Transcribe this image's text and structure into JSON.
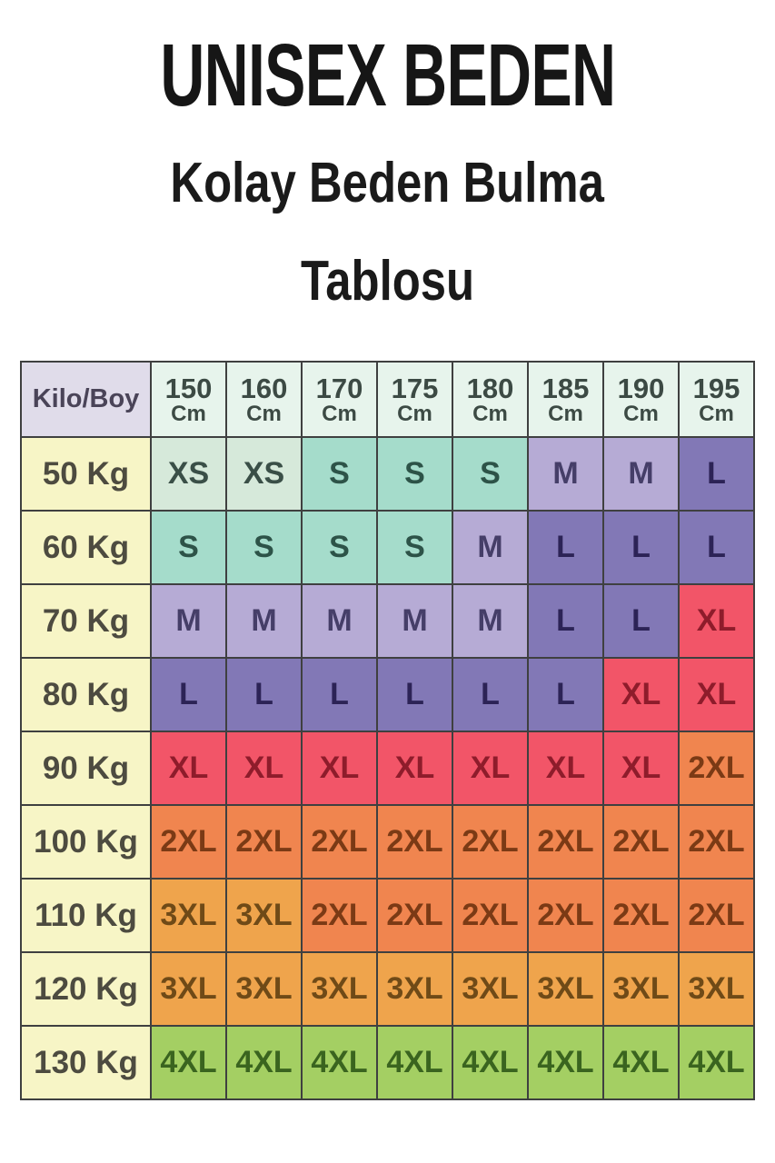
{
  "page": {
    "title": "UNISEX BEDEN",
    "subtitle_line1": "Kolay Beden Bulma",
    "subtitle_line2": "Tablosu"
  },
  "chart_data": {
    "type": "table",
    "title": "UNISEX BEDEN - Kolay Beden Bulma Tablosu",
    "corner_label": "Kilo/Boy",
    "unit_label": "Cm",
    "columns": [
      "150",
      "160",
      "170",
      "175",
      "180",
      "185",
      "190",
      "195"
    ],
    "rows": [
      {
        "label": "50 Kg",
        "sizes": [
          "XS",
          "XS",
          "S",
          "S",
          "S",
          "M",
          "M",
          "L"
        ]
      },
      {
        "label": "60 Kg",
        "sizes": [
          "S",
          "S",
          "S",
          "S",
          "M",
          "L",
          "L",
          "L"
        ]
      },
      {
        "label": "70 Kg",
        "sizes": [
          "M",
          "M",
          "M",
          "M",
          "M",
          "L",
          "L",
          "XL"
        ]
      },
      {
        "label": "80 Kg",
        "sizes": [
          "L",
          "L",
          "L",
          "L",
          "L",
          "L",
          "XL",
          "XL"
        ]
      },
      {
        "label": "90 Kg",
        "sizes": [
          "XL",
          "XL",
          "XL",
          "XL",
          "XL",
          "XL",
          "XL",
          "2XL"
        ]
      },
      {
        "label": "100 Kg",
        "sizes": [
          "2XL",
          "2XL",
          "2XL",
          "2XL",
          "2XL",
          "2XL",
          "2XL",
          "2XL"
        ]
      },
      {
        "label": "110 Kg",
        "sizes": [
          "3XL",
          "3XL",
          "2XL",
          "2XL",
          "2XL",
          "2XL",
          "2XL",
          "2XL"
        ]
      },
      {
        "label": "120 Kg",
        "sizes": [
          "3XL",
          "3XL",
          "3XL",
          "3XL",
          "3XL",
          "3XL",
          "3XL",
          "3XL"
        ]
      },
      {
        "label": "130 Kg",
        "sizes": [
          "4XL",
          "4XL",
          "4XL",
          "4XL",
          "4XL",
          "4XL",
          "4XL",
          "4XL"
        ]
      }
    ]
  },
  "colors": {
    "page_bg": "#ffffff",
    "border": "#3f4040",
    "title_text": "#161616",
    "corner_bg": "#e0dcea",
    "corner_text": "#4a4458",
    "col_header_bg": "#e7f4ec",
    "col_header_text": "#3c4a44",
    "row_label_bg": "#f7f5c6",
    "row_label_text": "#4d4b40",
    "sizes": {
      "xs": {
        "bg": "#d6e9da",
        "text": "#3a4f47"
      },
      "s": {
        "bg": "#a5dccb",
        "text": "#2d5348"
      },
      "m": {
        "bg": "#b6abd5",
        "text": "#453e68"
      },
      "l": {
        "bg": "#8278b6",
        "text": "#2c2356"
      },
      "xl": {
        "bg": "#f25568",
        "text": "#8e1c2b"
      },
      "2xl": {
        "bg": "#f0854f",
        "text": "#7b3a15"
      },
      "3xl": {
        "bg": "#efa44c",
        "text": "#6f4a17"
      },
      "4xl": {
        "bg": "#a4cf63",
        "text": "#3a641f"
      }
    }
  }
}
